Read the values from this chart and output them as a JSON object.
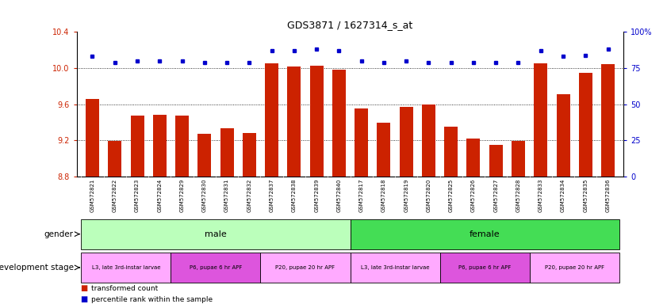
{
  "title": "GDS3871 / 1627314_s_at",
  "samples": [
    "GSM572821",
    "GSM572822",
    "GSM572823",
    "GSM572824",
    "GSM572829",
    "GSM572830",
    "GSM572831",
    "GSM572832",
    "GSM572837",
    "GSM572838",
    "GSM572839",
    "GSM572840",
    "GSM572817",
    "GSM572818",
    "GSM572819",
    "GSM572820",
    "GSM572825",
    "GSM572826",
    "GSM572827",
    "GSM572828",
    "GSM572833",
    "GSM572834",
    "GSM572835",
    "GSM572836"
  ],
  "transformed_count": [
    9.66,
    9.19,
    9.47,
    9.48,
    9.47,
    9.27,
    9.33,
    9.28,
    10.05,
    10.02,
    10.03,
    9.98,
    9.55,
    9.39,
    9.57,
    9.6,
    9.35,
    9.22,
    9.15,
    9.19,
    10.05,
    9.71,
    9.95,
    10.04
  ],
  "percentile": [
    83,
    79,
    80,
    80,
    80,
    79,
    79,
    79,
    87,
    87,
    88,
    87,
    80,
    79,
    80,
    79,
    79,
    79,
    79,
    79,
    87,
    83,
    84,
    88
  ],
  "bar_color": "#cc2200",
  "dot_color": "#0000cc",
  "ylim_left": [
    8.8,
    10.4
  ],
  "yticks_left": [
    8.8,
    9.2,
    9.6,
    10.0,
    10.4
  ],
  "ylim_right": [
    0,
    100
  ],
  "yticks_right": [
    0,
    25,
    50,
    75,
    100
  ],
  "ytick_labels_right": [
    "0",
    "25",
    "50",
    "75",
    "100%"
  ],
  "gender_groups": [
    {
      "label": "male",
      "start": 0,
      "end": 11,
      "color": "#bbffbb"
    },
    {
      "label": "female",
      "start": 12,
      "end": 23,
      "color": "#44dd55"
    }
  ],
  "dev_stage_groups": [
    {
      "label": "L3, late 3rd-instar larvae",
      "start": 0,
      "end": 3,
      "color": "#ffaaff"
    },
    {
      "label": "P6, pupae 6 hr APF",
      "start": 4,
      "end": 7,
      "color": "#dd55dd"
    },
    {
      "label": "P20, pupae 20 hr APF",
      "start": 8,
      "end": 11,
      "color": "#ffaaff"
    },
    {
      "label": "L3, late 3rd-instar larvae",
      "start": 12,
      "end": 15,
      "color": "#ffaaff"
    },
    {
      "label": "P6, pupae 6 hr APF",
      "start": 16,
      "end": 19,
      "color": "#dd55dd"
    },
    {
      "label": "P20, pupae 20 hr APF",
      "start": 20,
      "end": 23,
      "color": "#ffaaff"
    }
  ],
  "legend_bar_label": "transformed count",
  "legend_dot_label": "percentile rank within the sample",
  "gender_label": "gender",
  "dev_stage_label": "development stage",
  "bar_width": 0.6,
  "background_color": "#ffffff",
  "xtick_bg": "#dddddd"
}
